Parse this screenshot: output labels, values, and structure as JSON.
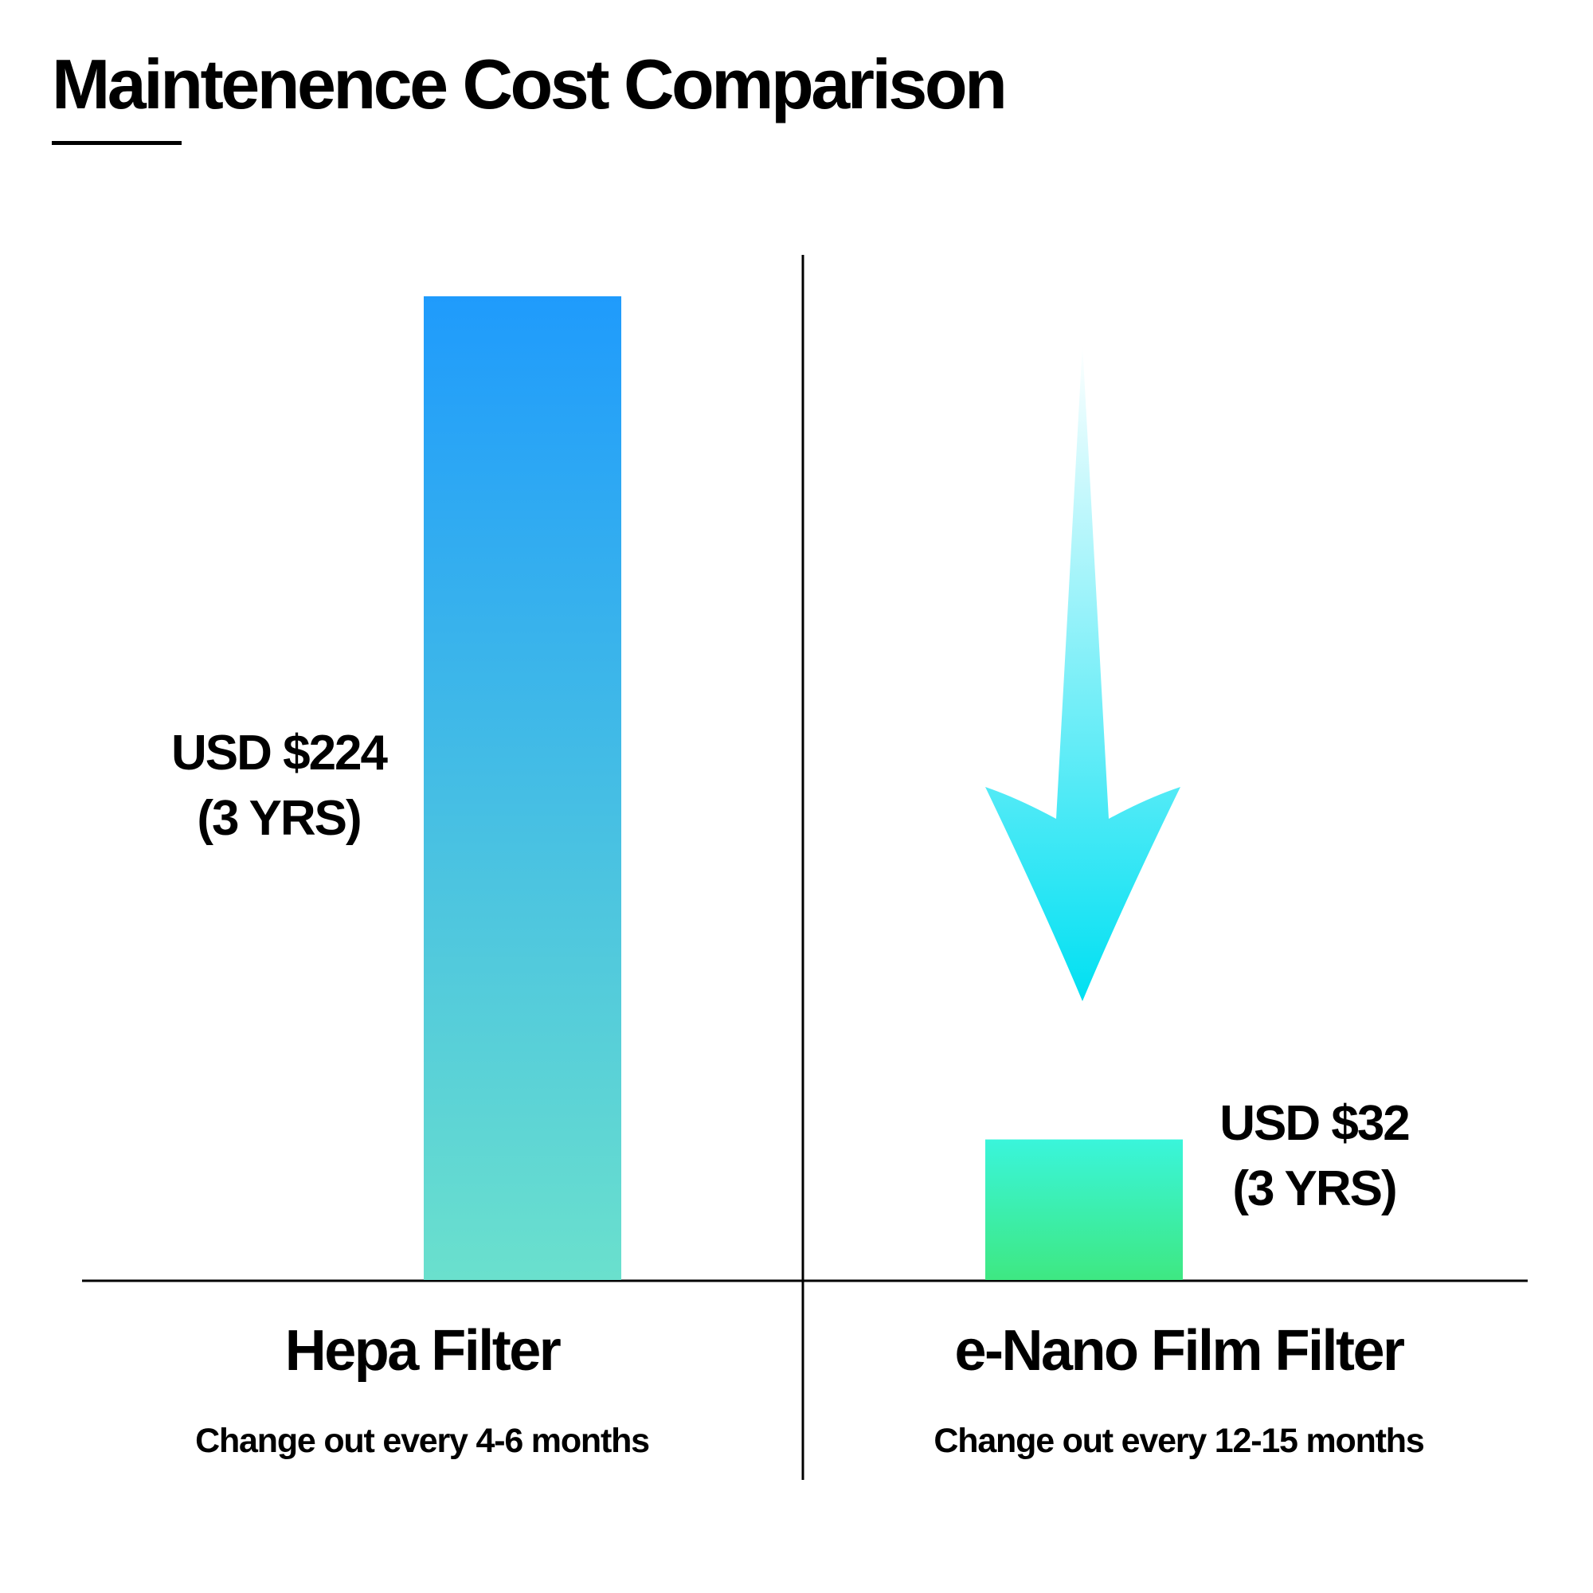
{
  "chart_data": {
    "type": "bar",
    "title": "Maintenence Cost Comparison",
    "ylim": [
      0,
      224
    ],
    "bars": [
      {
        "category": "Hepa Filter",
        "note": "Change out every 4-6 months",
        "value": 224,
        "label_line1": "USD $224",
        "label_line2": "(3 YRS)",
        "color_top": "#1f9bfc",
        "color_bottom": "#6ae0cd"
      },
      {
        "category": "e-Nano Film Filter",
        "note": "Change out every 12-15 months",
        "value": 32,
        "label_line1": "USD $32",
        "label_line2": "(3 YRS)",
        "color_top": "#3af5db",
        "color_bottom": "#3ee882"
      }
    ],
    "arrow": {
      "direction": "down",
      "color_top": "#ffffff",
      "color_bottom": "#00e0f2"
    }
  }
}
